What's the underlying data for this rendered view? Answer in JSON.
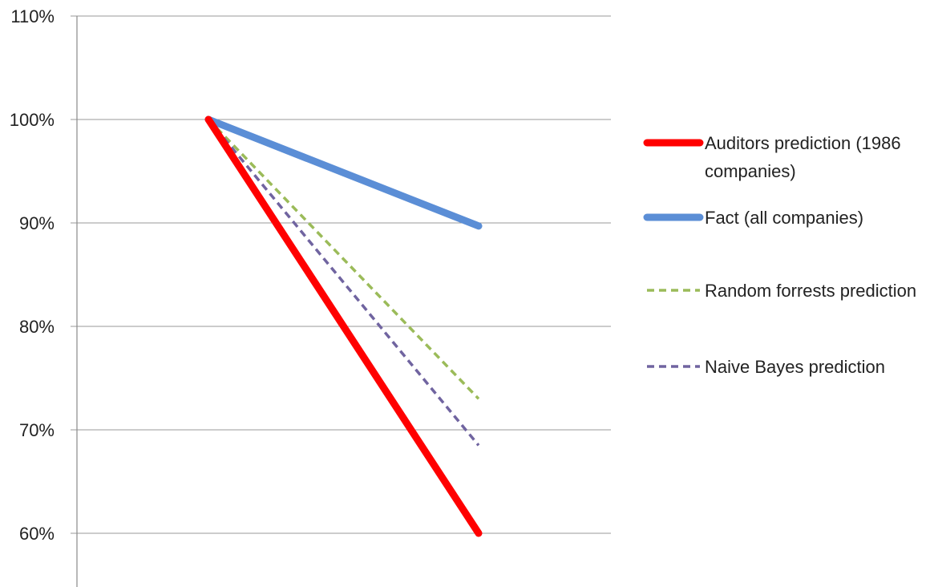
{
  "chart_data": {
    "type": "line",
    "title": "",
    "xlabel": "",
    "ylabel": "",
    "ylim": [
      0.55,
      1.1
    ],
    "yticks": [
      {
        "value": 1.1,
        "label": "110%"
      },
      {
        "value": 1.0,
        "label": "100%"
      },
      {
        "value": 0.9,
        "label": "90%"
      },
      {
        "value": 0.8,
        "label": "80%"
      },
      {
        "value": 0.7,
        "label": "70%"
      },
      {
        "value": 0.6,
        "label": "60%"
      }
    ],
    "grid": true,
    "legend_position": "right",
    "categories": [
      "",
      ""
    ],
    "series": [
      {
        "name": "Auditors prediction (1986 companies)",
        "legend_lines": [
          "Auditors prediction (1986",
          "companies)"
        ],
        "values": [
          1.0,
          0.6
        ],
        "color": "#ff0000",
        "style": "solid",
        "width": "thick"
      },
      {
        "name": "Fact (all companies)",
        "legend_lines": [
          "Fact (all companies)"
        ],
        "values": [
          1.0,
          0.897
        ],
        "color": "#5b8ed6",
        "style": "solid",
        "width": "thick"
      },
      {
        "name": "Random forrests prediction",
        "legend_lines": [
          "Random forrests prediction"
        ],
        "values": [
          1.0,
          0.73
        ],
        "color": "#9bbb59",
        "style": "dashed",
        "width": "thin"
      },
      {
        "name": "Naive Bayes prediction",
        "legend_lines": [
          "Naive Bayes prediction"
        ],
        "values": [
          1.0,
          0.685
        ],
        "color": "#7064a0",
        "style": "dashed",
        "width": "thin"
      }
    ]
  }
}
